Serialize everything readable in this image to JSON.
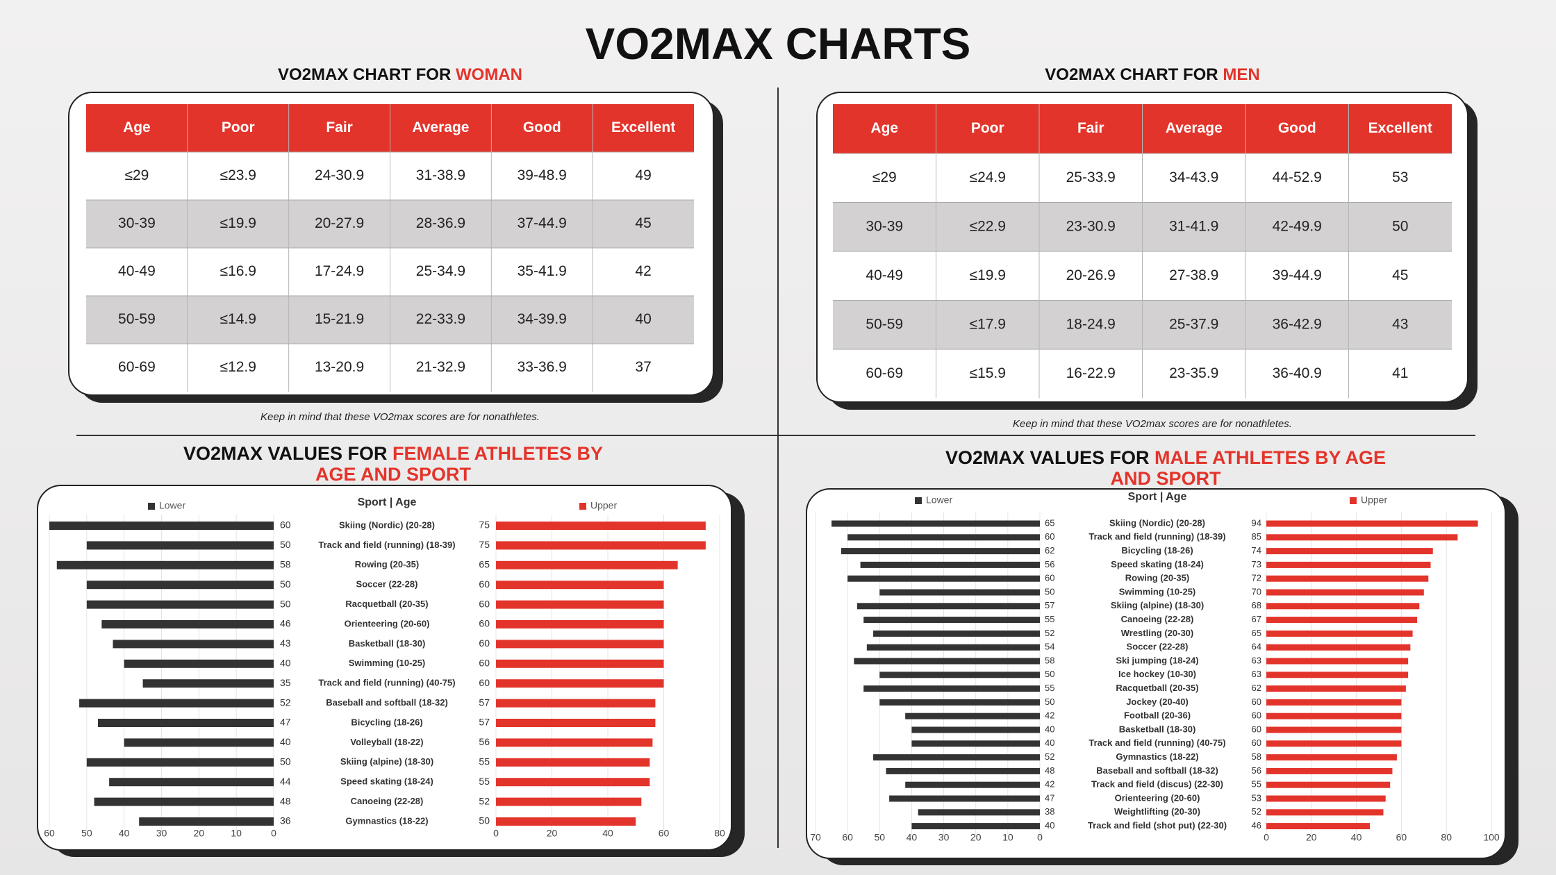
{
  "title": "VO2MAX CHARTS",
  "tables": [
    {
      "title": "VO2MAX CHART FOR",
      "title_highlight": "WOMAN",
      "columns": [
        "Age",
        "Poor",
        "Fair",
        "Average",
        "Good",
        "Excellent"
      ],
      "rows": [
        [
          "≤29",
          "≤23.9",
          "24-30.9",
          "31-38.9",
          "39-48.9",
          "49"
        ],
        [
          "30-39",
          "≤19.9",
          "20-27.9",
          "28-36.9",
          "37-44.9",
          "45"
        ],
        [
          "40-49",
          "≤16.9",
          "17-24.9",
          "25-34.9",
          "35-41.9",
          "42"
        ],
        [
          "50-59",
          "≤14.9",
          "15-21.9",
          "22-33.9",
          "34-39.9",
          "40"
        ],
        [
          "60-69",
          "≤12.9",
          "13-20.9",
          "21-32.9",
          "33-36.9",
          "37"
        ]
      ],
      "note": "Keep in mind that these VO2max scores are for nonathletes."
    },
    {
      "title": "VO2MAX CHART FOR",
      "title_highlight": "MEN",
      "columns": [
        "Age",
        "Poor",
        "Fair",
        "Average",
        "Good",
        "Excellent"
      ],
      "rows": [
        [
          "≤29",
          "≤24.9",
          "25-33.9",
          "34-43.9",
          "44-52.9",
          "53"
        ],
        [
          "30-39",
          "≤22.9",
          "23-30.9",
          "31-41.9",
          "42-49.9",
          "50"
        ],
        [
          "40-49",
          "≤19.9",
          "20-26.9",
          "27-38.9",
          "39-44.9",
          "45"
        ],
        [
          "50-59",
          "≤17.9",
          "18-24.9",
          "25-37.9",
          "36-42.9",
          "43"
        ],
        [
          "60-69",
          "≤15.9",
          "16-22.9",
          "23-35.9",
          "36-40.9",
          "41"
        ]
      ],
      "note": "Keep in mind that these VO2max scores are for nonathletes."
    }
  ],
  "chart_data": [
    {
      "type": "butterfly",
      "title": "VO2MAX VALUES FOR",
      "title_highlight": "FEMALE ATHLETES BY AGE AND SPORT",
      "axis_label": "Sport | Age",
      "categories": [
        "Skiing (Nordic) (20-28)",
        "Track and field (running) (18-39)",
        "Rowing (20-35)",
        "Soccer (22-28)",
        "Racquetball (20-35)",
        "Orienteering (20-60)",
        "Basketball (18-30)",
        "Swimming (10-25)",
        "Track and field (running) (40-75)",
        "Baseball and softball (18-32)",
        "Bicycling (18-26)",
        "Volleyball (18-22)",
        "Skiing (alpine) (18-30)",
        "Speed skating (18-24)",
        "Canoeing (22-28)",
        "Gymnastics (18-22)"
      ],
      "series": [
        {
          "name": "Lower",
          "color": "#333333",
          "axis": "x",
          "values": [
            60,
            50,
            58,
            50,
            50,
            46,
            43,
            40,
            35,
            52,
            47,
            40,
            50,
            44,
            48,
            36
          ]
        },
        {
          "name": "Upper",
          "color": "#e3342b",
          "axis": "x2",
          "values": [
            75,
            75,
            65,
            60,
            60,
            60,
            60,
            60,
            60,
            57,
            57,
            56,
            55,
            55,
            52,
            50
          ]
        }
      ],
      "xlim": [
        60,
        0
      ],
      "xticks": [
        60,
        50,
        40,
        30,
        20,
        10,
        0
      ],
      "x2lim": [
        0,
        80
      ],
      "x2ticks": [
        0,
        20,
        40,
        60,
        80
      ],
      "grid": true
    },
    {
      "type": "butterfly",
      "title": "VO2MAX VALUES FOR",
      "title_highlight": "MALE ATHLETES BY AGE AND SPORT",
      "axis_label": "Sport | Age",
      "categories": [
        "Skiing (Nordic) (20-28)",
        "Track and field (running) (18-39)",
        "Bicycling (18-26)",
        "Speed skating (18-24)",
        "Rowing (20-35)",
        "Swimming (10-25)",
        "Skiing (alpine) (18-30)",
        "Canoeing (22-28)",
        "Wrestling (20-30)",
        "Soccer (22-28)",
        "Ski jumping (18-24)",
        "Ice hockey (10-30)",
        "Racquetball (20-35)",
        "Jockey (20-40)",
        "Football (20-36)",
        "Basketball (18-30)",
        "Track and field (running) (40-75)",
        "Gymnastics (18-22)",
        "Baseball and softball (18-32)",
        "Track and field (discus) (22-30)",
        "Orienteering (20-60)",
        "Weightlifting (20-30)",
        "Track and field (shot put) (22-30)"
      ],
      "series": [
        {
          "name": "Lower",
          "color": "#333333",
          "axis": "x",
          "values": [
            65,
            60,
            62,
            56,
            60,
            50,
            57,
            55,
            52,
            54,
            58,
            50,
            55,
            50,
            42,
            40,
            40,
            52,
            48,
            42,
            47,
            38,
            40
          ]
        },
        {
          "name": "Upper",
          "color": "#e3342b",
          "axis": "x2",
          "values": [
            94,
            85,
            74,
            73,
            72,
            70,
            68,
            67,
            65,
            64,
            63,
            63,
            62,
            60,
            60,
            60,
            60,
            58,
            56,
            55,
            53,
            52,
            46
          ]
        }
      ],
      "xlim": [
        70,
        0
      ],
      "xticks": [
        70,
        60,
        50,
        40,
        30,
        20,
        10,
        0
      ],
      "x2lim": [
        0,
        100
      ],
      "x2ticks": [
        0,
        20,
        40,
        60,
        80,
        100
      ],
      "grid": true
    }
  ]
}
